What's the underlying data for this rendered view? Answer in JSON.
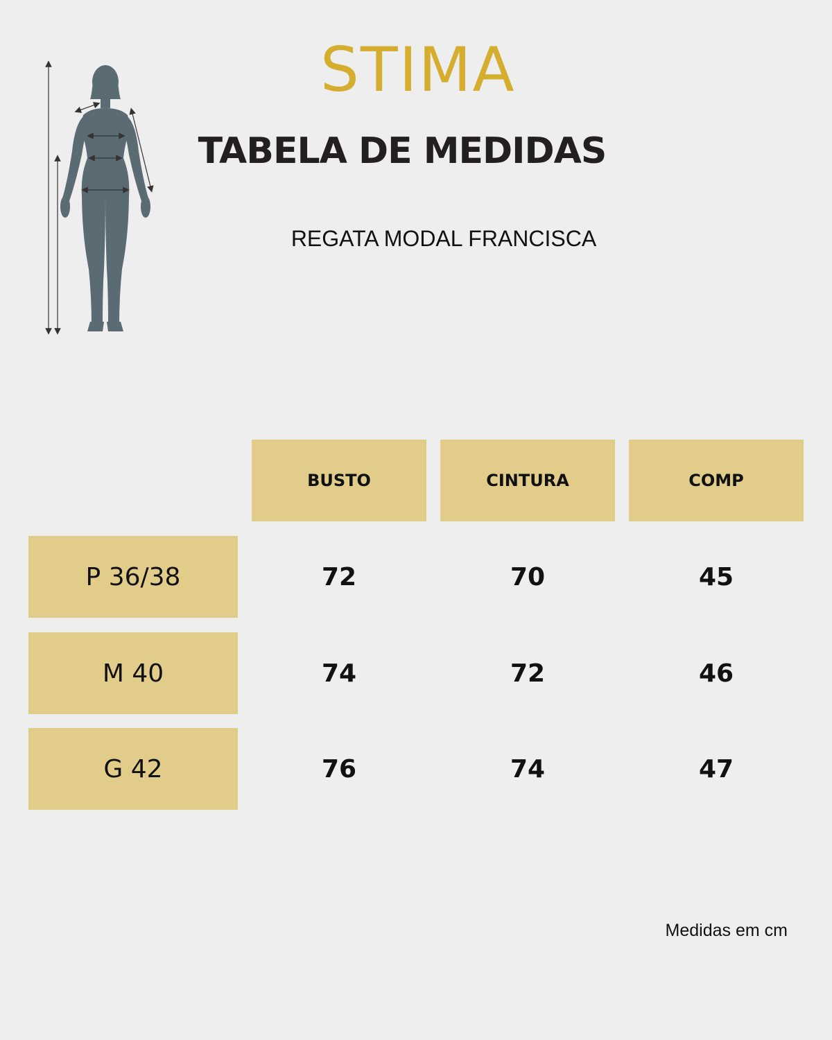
{
  "brand": {
    "logo_text": "STIMA",
    "color": "#d5ae2f"
  },
  "header": {
    "title": "TABELA DE MEDIDAS",
    "product": "REGATA MODAL FRANCISCA"
  },
  "illustration": {
    "icon": "female-body-measurement-icon",
    "color": "#5b6b73"
  },
  "table": {
    "accent_color": "#e1cc8a",
    "columns": [
      "BUSTO",
      "CINTURA",
      "COMP"
    ],
    "rows": [
      {
        "size": "P 36/38",
        "values": [
          "72",
          "70",
          "45"
        ]
      },
      {
        "size": "M 40",
        "values": [
          "74",
          "72",
          "46"
        ]
      },
      {
        "size": "G 42",
        "values": [
          "76",
          "74",
          "47"
        ]
      }
    ]
  },
  "footer": {
    "note": "Medidas em cm"
  }
}
